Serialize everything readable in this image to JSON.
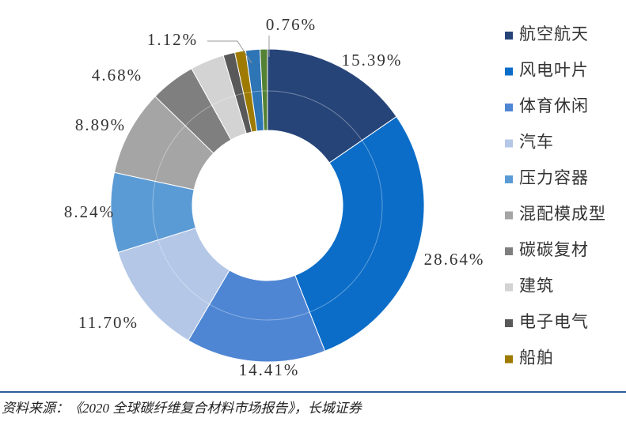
{
  "chart_data": {
    "type": "pie",
    "categories": [
      "航空航天",
      "风电叶片",
      "体育休闲",
      "汽车",
      "压力容器",
      "混配模成型",
      "碳碳复材",
      "建筑",
      "电子电气",
      "船舶",
      null,
      null
    ],
    "values": [
      15.39,
      28.64,
      14.41,
      11.7,
      8.24,
      8.89,
      4.68,
      3.5,
      1.2,
      1.12,
      1.47,
      0.76
    ],
    "value_labels": [
      "15.39%",
      "28.64%",
      "14.41%",
      "11.70%",
      "8.24%",
      "8.89%",
      "4.68%",
      null,
      null,
      "1.12%",
      null,
      "0.76%"
    ],
    "colors": [
      "#264478",
      "#0b6dc8",
      "#4f86d4",
      "#b4c7e7",
      "#5b9bd5",
      "#a5a5a5",
      "#7f7f7f",
      "#d3d3d3",
      "#595959",
      "#9e7b00",
      "#2e75b6",
      "#548235"
    ],
    "legend": "right",
    "source": "资料来源：《2020 全球碳纤维复合材料市场报告》，长城证券"
  }
}
